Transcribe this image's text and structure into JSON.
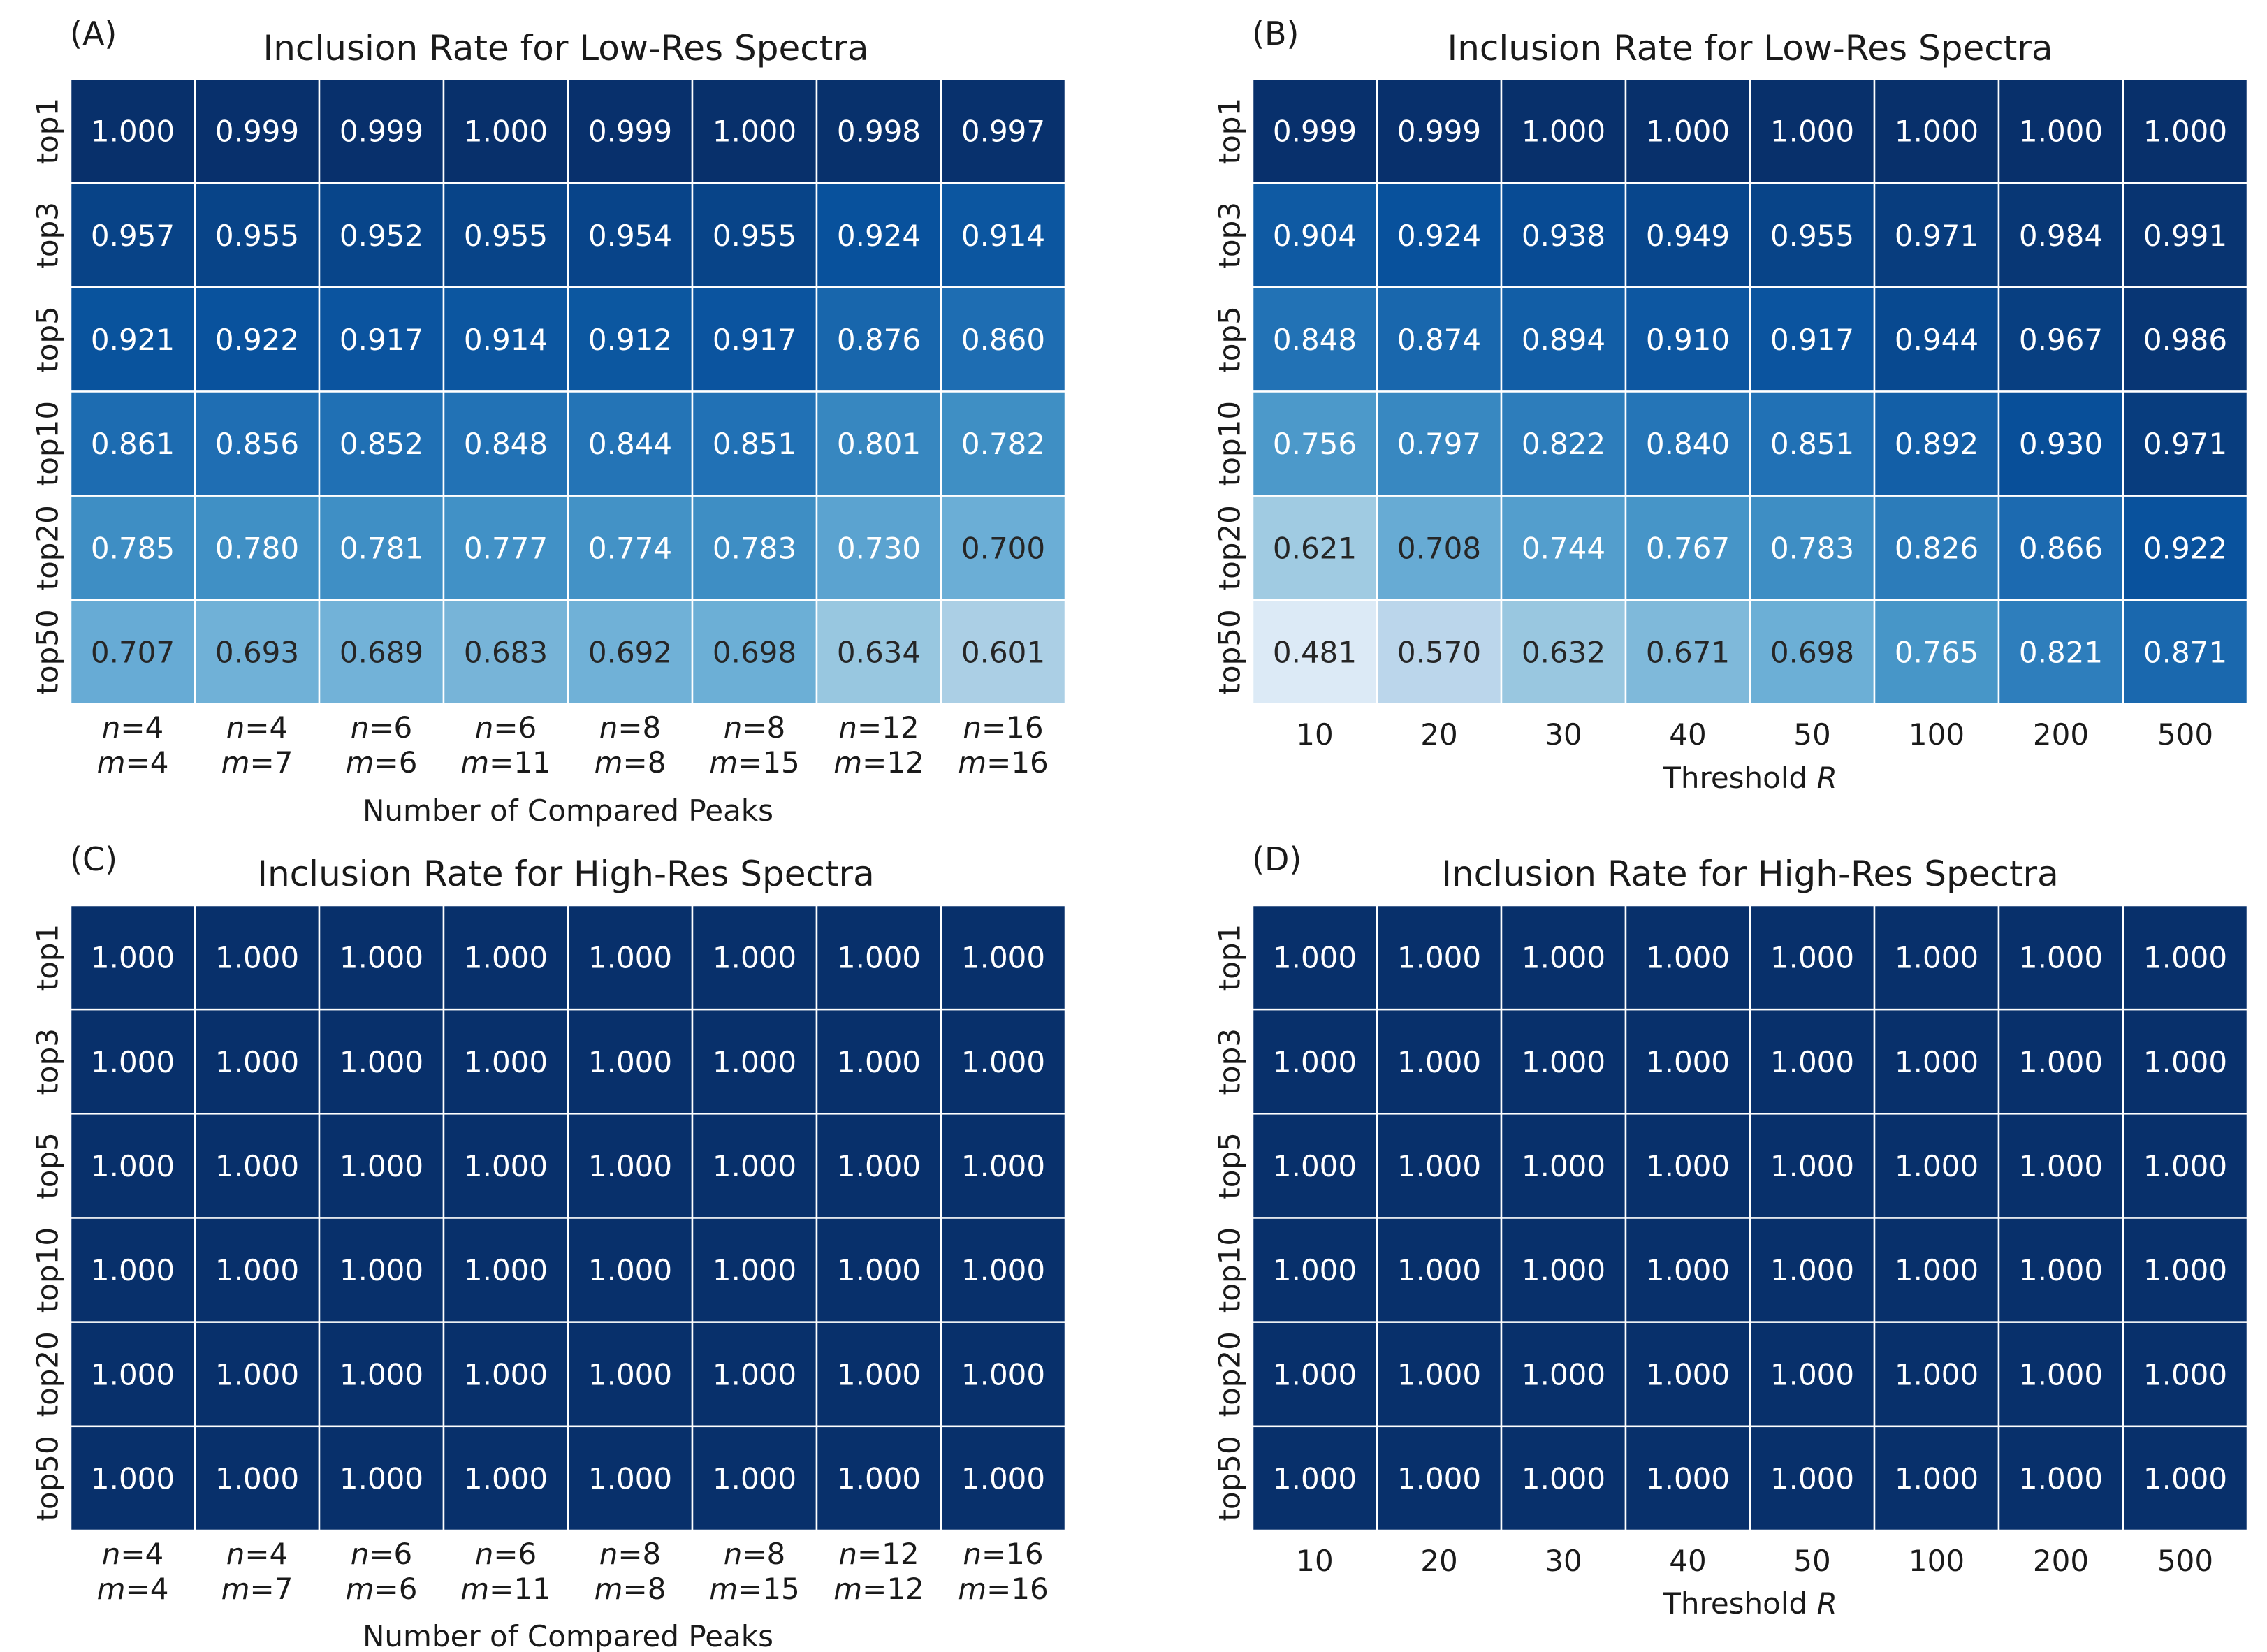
{
  "chart_data": [
    {
      "type": "heatmap",
      "panel_label": "(A)",
      "title": "Inclusion Rate for Low-Res Spectra",
      "xlabel": "Number of Compared Peaks",
      "ylabel": "",
      "rows": [
        "top1",
        "top3",
        "top5",
        "top10",
        "top20",
        "top50"
      ],
      "columns": [
        {
          "n": "4",
          "m": "4"
        },
        {
          "n": "4",
          "m": "7"
        },
        {
          "n": "6",
          "m": "6"
        },
        {
          "n": "6",
          "m": "11"
        },
        {
          "n": "8",
          "m": "8"
        },
        {
          "n": "8",
          "m": "15"
        },
        {
          "n": "12",
          "m": "12"
        },
        {
          "n": "16",
          "m": "16"
        }
      ],
      "values": [
        [
          "1.000",
          "0.999",
          "0.999",
          "1.000",
          "0.999",
          "1.000",
          "0.998",
          "0.997"
        ],
        [
          "0.957",
          "0.955",
          "0.952",
          "0.955",
          "0.954",
          "0.955",
          "0.924",
          "0.914"
        ],
        [
          "0.921",
          "0.922",
          "0.917",
          "0.914",
          "0.912",
          "0.917",
          "0.876",
          "0.860"
        ],
        [
          "0.861",
          "0.856",
          "0.852",
          "0.848",
          "0.844",
          "0.851",
          "0.801",
          "0.782"
        ],
        [
          "0.785",
          "0.780",
          "0.781",
          "0.777",
          "0.774",
          "0.783",
          "0.730",
          "0.700"
        ],
        [
          "0.707",
          "0.693",
          "0.689",
          "0.683",
          "0.692",
          "0.698",
          "0.634",
          "0.601"
        ]
      ]
    },
    {
      "type": "heatmap",
      "panel_label": "(B)",
      "title": "Inclusion Rate for Low-Res Spectra",
      "xlabel": "Threshold",
      "xlabel_var": "R",
      "ylabel": "",
      "rows": [
        "top1",
        "top3",
        "top5",
        "top10",
        "top20",
        "top50"
      ],
      "columns": [
        "10",
        "20",
        "30",
        "40",
        "50",
        "100",
        "200",
        "500"
      ],
      "values": [
        [
          "0.999",
          "0.999",
          "1.000",
          "1.000",
          "1.000",
          "1.000",
          "1.000",
          "1.000"
        ],
        [
          "0.904",
          "0.924",
          "0.938",
          "0.949",
          "0.955",
          "0.971",
          "0.984",
          "0.991"
        ],
        [
          "0.848",
          "0.874",
          "0.894",
          "0.910",
          "0.917",
          "0.944",
          "0.967",
          "0.986"
        ],
        [
          "0.756",
          "0.797",
          "0.822",
          "0.840",
          "0.851",
          "0.892",
          "0.930",
          "0.971"
        ],
        [
          "0.621",
          "0.708",
          "0.744",
          "0.767",
          "0.783",
          "0.826",
          "0.866",
          "0.922"
        ],
        [
          "0.481",
          "0.570",
          "0.632",
          "0.671",
          "0.698",
          "0.765",
          "0.821",
          "0.871"
        ]
      ]
    },
    {
      "type": "heatmap",
      "panel_label": "(C)",
      "title": "Inclusion Rate for High-Res Spectra",
      "xlabel": "Number of Compared Peaks",
      "ylabel": "",
      "rows": [
        "top1",
        "top3",
        "top5",
        "top10",
        "top20",
        "top50"
      ],
      "columns": [
        {
          "n": "4",
          "m": "4"
        },
        {
          "n": "4",
          "m": "7"
        },
        {
          "n": "6",
          "m": "6"
        },
        {
          "n": "6",
          "m": "11"
        },
        {
          "n": "8",
          "m": "8"
        },
        {
          "n": "8",
          "m": "15"
        },
        {
          "n": "12",
          "m": "12"
        },
        {
          "n": "16",
          "m": "16"
        }
      ],
      "values": [
        [
          "1.000",
          "1.000",
          "1.000",
          "1.000",
          "1.000",
          "1.000",
          "1.000",
          "1.000"
        ],
        [
          "1.000",
          "1.000",
          "1.000",
          "1.000",
          "1.000",
          "1.000",
          "1.000",
          "1.000"
        ],
        [
          "1.000",
          "1.000",
          "1.000",
          "1.000",
          "1.000",
          "1.000",
          "1.000",
          "1.000"
        ],
        [
          "1.000",
          "1.000",
          "1.000",
          "1.000",
          "1.000",
          "1.000",
          "1.000",
          "1.000"
        ],
        [
          "1.000",
          "1.000",
          "1.000",
          "1.000",
          "1.000",
          "1.000",
          "1.000",
          "1.000"
        ],
        [
          "1.000",
          "1.000",
          "1.000",
          "1.000",
          "1.000",
          "1.000",
          "1.000",
          "1.000"
        ]
      ]
    },
    {
      "type": "heatmap",
      "panel_label": "(D)",
      "title": "Inclusion Rate for High-Res Spectra",
      "xlabel": "Threshold",
      "xlabel_var": "R",
      "ylabel": "",
      "rows": [
        "top1",
        "top3",
        "top5",
        "top10",
        "top20",
        "top50"
      ],
      "columns": [
        "10",
        "20",
        "30",
        "40",
        "50",
        "100",
        "200",
        "500"
      ],
      "values": [
        [
          "1.000",
          "1.000",
          "1.000",
          "1.000",
          "1.000",
          "1.000",
          "1.000",
          "1.000"
        ],
        [
          "1.000",
          "1.000",
          "1.000",
          "1.000",
          "1.000",
          "1.000",
          "1.000",
          "1.000"
        ],
        [
          "1.000",
          "1.000",
          "1.000",
          "1.000",
          "1.000",
          "1.000",
          "1.000",
          "1.000"
        ],
        [
          "1.000",
          "1.000",
          "1.000",
          "1.000",
          "1.000",
          "1.000",
          "1.000",
          "1.000"
        ],
        [
          "1.000",
          "1.000",
          "1.000",
          "1.000",
          "1.000",
          "1.000",
          "1.000",
          "1.000"
        ],
        [
          "1.000",
          "1.000",
          "1.000",
          "1.000",
          "1.000",
          "1.000",
          "1.000",
          "1.000"
        ]
      ]
    }
  ],
  "colormap": {
    "name": "Blues",
    "stops": [
      "#f7fbff",
      "#deebf7",
      "#c6dbef",
      "#9ecae1",
      "#6baed6",
      "#4292c6",
      "#2171b5",
      "#08519c",
      "#08306b"
    ],
    "dark_text_color": "#262626",
    "light_text_color": "#ffffff"
  }
}
